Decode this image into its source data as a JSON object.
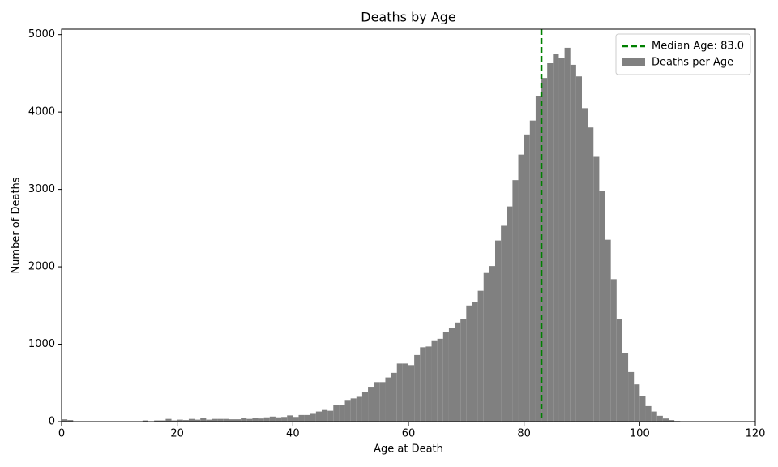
{
  "chart_data": {
    "type": "histogram",
    "title": "Deaths by Age",
    "xlabel": "Age at Death",
    "ylabel": "Number of Deaths",
    "bins": [
      0,
      1,
      2,
      3,
      4,
      5,
      6,
      7,
      8,
      9,
      10,
      11,
      12,
      13,
      14,
      15,
      16,
      17,
      18,
      19,
      20,
      21,
      22,
      23,
      24,
      25,
      26,
      27,
      28,
      29,
      30,
      31,
      32,
      33,
      34,
      35,
      36,
      37,
      38,
      39,
      40,
      41,
      42,
      43,
      44,
      45,
      46,
      47,
      48,
      49,
      50,
      51,
      52,
      53,
      54,
      55,
      56,
      57,
      58,
      59,
      60,
      61,
      62,
      63,
      64,
      65,
      66,
      67,
      68,
      69,
      70,
      71,
      72,
      73,
      74,
      75,
      76,
      77,
      78,
      79,
      80,
      81,
      82,
      83,
      84,
      85,
      86,
      87,
      88,
      89,
      90,
      91,
      92,
      93,
      94,
      95,
      96,
      97,
      98,
      99,
      100,
      101,
      102,
      103,
      104,
      105,
      106,
      107,
      108
    ],
    "series": [
      {
        "name": "Deaths per Age",
        "color": "#808080",
        "values": [
          30,
          20,
          3,
          3,
          3,
          3,
          3,
          3,
          3,
          3,
          3,
          3,
          3,
          3,
          15,
          5,
          15,
          15,
          35,
          15,
          25,
          20,
          35,
          25,
          45,
          25,
          35,
          35,
          35,
          30,
          30,
          45,
          35,
          45,
          40,
          55,
          65,
          55,
          60,
          80,
          60,
          85,
          85,
          100,
          130,
          150,
          140,
          210,
          220,
          280,
          300,
          320,
          380,
          450,
          510,
          510,
          570,
          630,
          750,
          750,
          730,
          860,
          960,
          970,
          1050,
          1070,
          1160,
          1210,
          1280,
          1320,
          1500,
          1540,
          1690,
          1920,
          2010,
          2340,
          2530,
          2780,
          3120,
          3450,
          3710,
          3890,
          4210,
          4440,
          4630,
          4750,
          4700,
          4830,
          4610,
          4460,
          4050,
          3800,
          3420,
          2980,
          2350,
          1840,
          1320,
          890,
          640,
          480,
          330,
          200,
          130,
          75,
          40,
          20,
          8,
          5
        ]
      }
    ],
    "vlines": [
      {
        "name": "Median Age: 83.0",
        "x": 83,
        "color": "#008000",
        "dashed": true
      }
    ],
    "xlim": [
      0,
      120
    ],
    "xticks": [
      0,
      20,
      40,
      60,
      80,
      100,
      120
    ],
    "ylim": [
      0,
      5070
    ],
    "yticks": [
      0,
      1000,
      2000,
      3000,
      4000,
      5000
    ],
    "legend": "upper right"
  }
}
